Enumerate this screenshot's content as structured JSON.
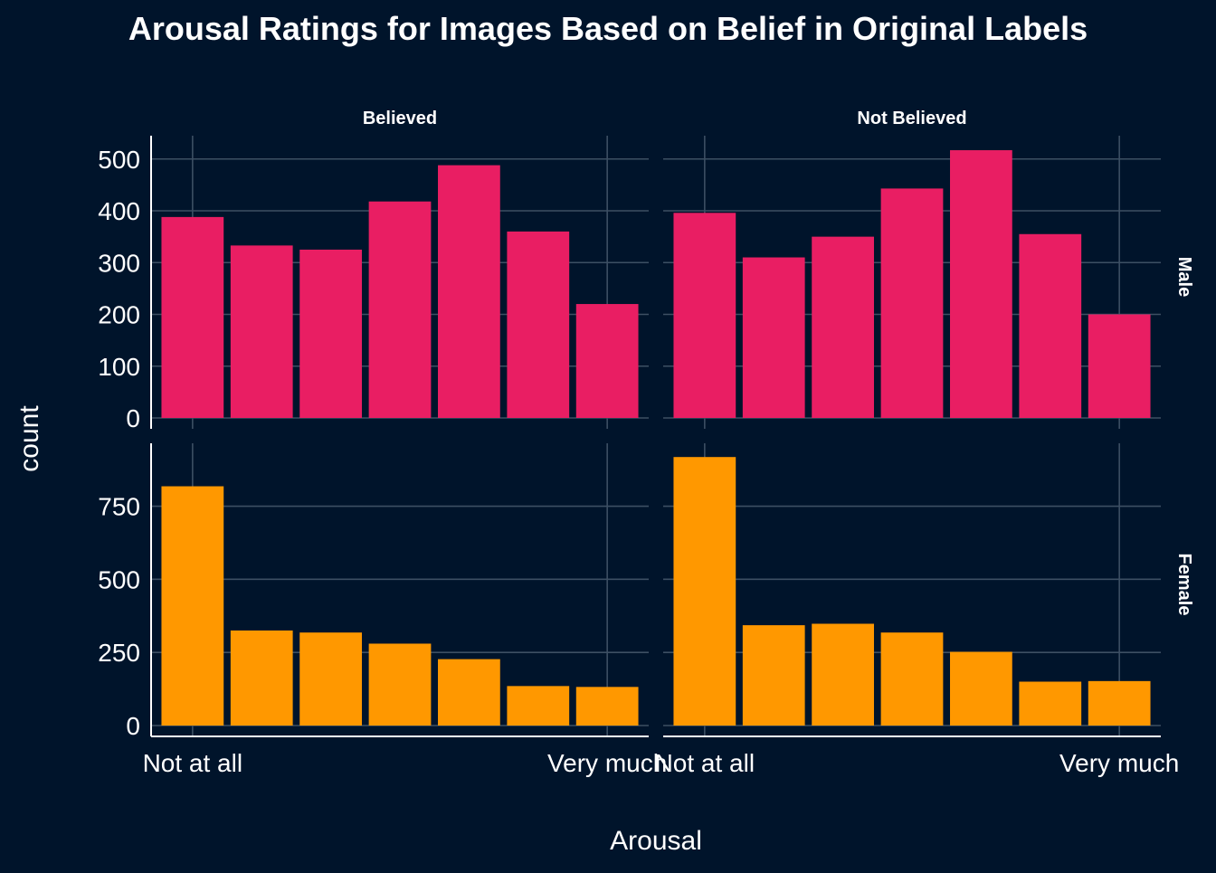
{
  "chart_data": {
    "type": "bar",
    "title": "Arousal Ratings for Images Based on Belief in Original Labels",
    "xlabel": "Arousal",
    "ylabel": "count",
    "x_tick_labels": [
      "Not at all",
      "Very much"
    ],
    "x_tick_positions": [
      1,
      7
    ],
    "x_levels": [
      1,
      2,
      3,
      4,
      5,
      6,
      7
    ],
    "columns": [
      "Believed",
      "Not Believed"
    ],
    "rows": [
      {
        "name": "Male",
        "color": "#e91e63",
        "ylim": [
          0,
          545
        ],
        "yticks": [
          0,
          100,
          200,
          300,
          400,
          500
        ],
        "panels": [
          {
            "column": "Believed",
            "values": [
              388,
              333,
              325,
              418,
              488,
              360,
              220
            ]
          },
          {
            "column": "Not Believed",
            "values": [
              396,
              310,
              350,
              443,
              517,
              355,
              200
            ]
          }
        ]
      },
      {
        "name": "Female",
        "color": "#ff9800",
        "ylim": [
          0,
          965
        ],
        "yticks": [
          0,
          250,
          500,
          750
        ],
        "panels": [
          {
            "column": "Believed",
            "values": [
              818,
              325,
              318,
              280,
              227,
              135,
              132
            ]
          },
          {
            "column": "Not Believed",
            "values": [
              918,
              343,
              348,
              318,
              252,
              150,
              152
            ]
          }
        ]
      }
    ],
    "grid": true,
    "background": "#00142b"
  }
}
